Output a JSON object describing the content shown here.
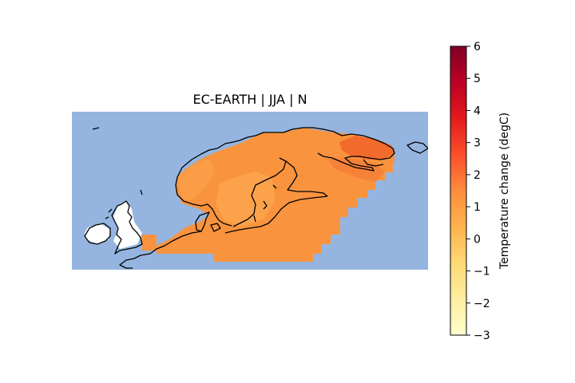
{
  "map": {
    "title": "EC-EARTH | JJA | N",
    "ocean_color": "#95b5e0",
    "no_data_color": "#ffffff",
    "coastline_color": "#000000"
  },
  "colorbar": {
    "label": "Temperature change (degC)",
    "min": -3,
    "max": 6,
    "ticks": [
      "6",
      "5",
      "4",
      "3",
      "2",
      "1",
      "0",
      "−1",
      "−2",
      "−3"
    ],
    "colormap": "YlOrRd",
    "colormap_stops": [
      "#ffffcc",
      "#ffeda0",
      "#fed976",
      "#feb24c",
      "#fd8d3c",
      "#fc4e2a",
      "#e31a1c",
      "#bd0026",
      "#800026"
    ]
  },
  "data_field": {
    "typical_value_range": [
      1.3,
      3.0
    ],
    "land_typical": 1.8,
    "sea_typical": 1.6,
    "northeast_max": 3.0
  }
}
